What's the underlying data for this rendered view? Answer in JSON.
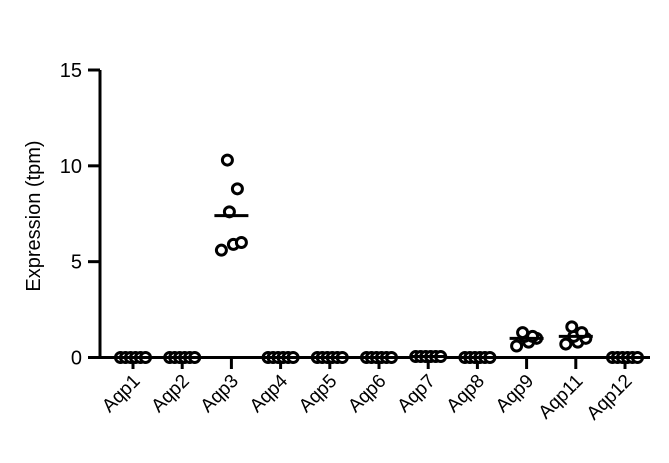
{
  "chart_data": {
    "type": "scatter",
    "title": "",
    "xlabel": "",
    "ylabel": "Expression (tpm)",
    "ylim": [
      0,
      15
    ],
    "yticks": [
      0,
      5,
      10,
      15
    ],
    "grid": false,
    "legend": "none",
    "marker": "open-circle",
    "mean_line": true,
    "color": "#000000",
    "categories": [
      "Aqp1",
      "Aqp2",
      "Aqp3",
      "Aqp4",
      "Aqp5",
      "Aqp6",
      "Aqp7",
      "Aqp8",
      "Aqp9",
      "Aqp11",
      "Aqp12"
    ],
    "points": [
      [
        0,
        0,
        0,
        0,
        0,
        0
      ],
      [
        0,
        0,
        0,
        0,
        0,
        0
      ],
      [
        5.6,
        5.9,
        6.0,
        7.6,
        8.8,
        10.3
      ],
      [
        0,
        0,
        0,
        0,
        0,
        0
      ],
      [
        0,
        0,
        0,
        0,
        0,
        0
      ],
      [
        0,
        0,
        0,
        0,
        0,
        0
      ],
      [
        0.05,
        0.05,
        0.05,
        0.05,
        0.05,
        0.05
      ],
      [
        0,
        0,
        0,
        0,
        0,
        0
      ],
      [
        0.6,
        0.8,
        1.0,
        1.1,
        1.1,
        1.3
      ],
      [
        0.7,
        0.8,
        1.0,
        1.1,
        1.3,
        1.6
      ],
      [
        0,
        0,
        0,
        0,
        0,
        0
      ]
    ],
    "means": [
      0,
      0,
      7.4,
      0,
      0,
      0,
      0.05,
      0,
      1.0,
      1.1,
      0
    ]
  }
}
